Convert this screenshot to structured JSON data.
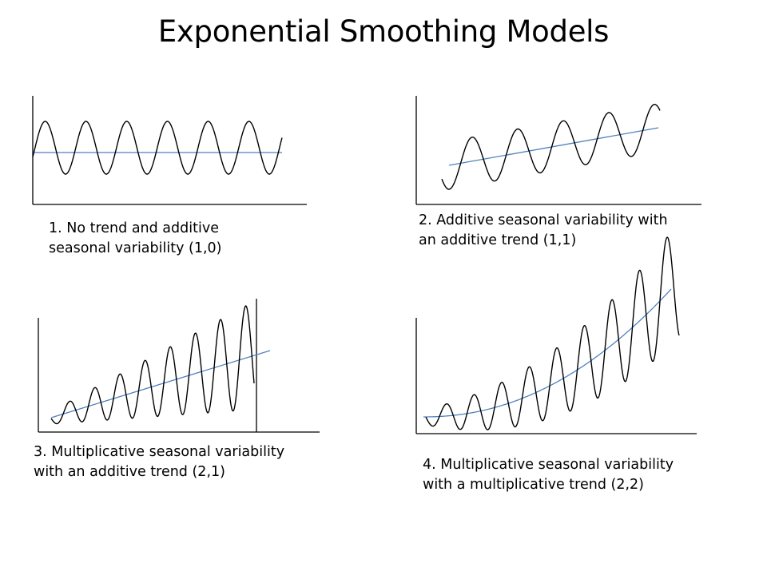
{
  "title": "Exponential Smoothing Models",
  "colors": {
    "axis": "#000000",
    "series": "#000000",
    "trend": "#4f81bd"
  },
  "panels": [
    {
      "id": "panel-1",
      "caption_lines": [
        "1.  No trend and additive",
        "seasonal variability (1,0)"
      ],
      "trend_type": "none",
      "seasonality_type": "additive"
    },
    {
      "id": "panel-2",
      "caption_lines": [
        "2. Additive seasonal variability with",
        "an additive trend (1,1)"
      ],
      "trend_type": "additive",
      "seasonality_type": "additive"
    },
    {
      "id": "panel-3",
      "caption_lines": [
        "3. Multiplicative seasonal variability",
        "with an additive trend (2,1)"
      ],
      "trend_type": "additive",
      "seasonality_type": "multiplicative"
    },
    {
      "id": "panel-4",
      "caption_lines": [
        "4. Multiplicative seasonal variability",
        "with a multiplicative trend (2,2)"
      ],
      "trend_type": "multiplicative",
      "seasonality_type": "multiplicative"
    }
  ]
}
